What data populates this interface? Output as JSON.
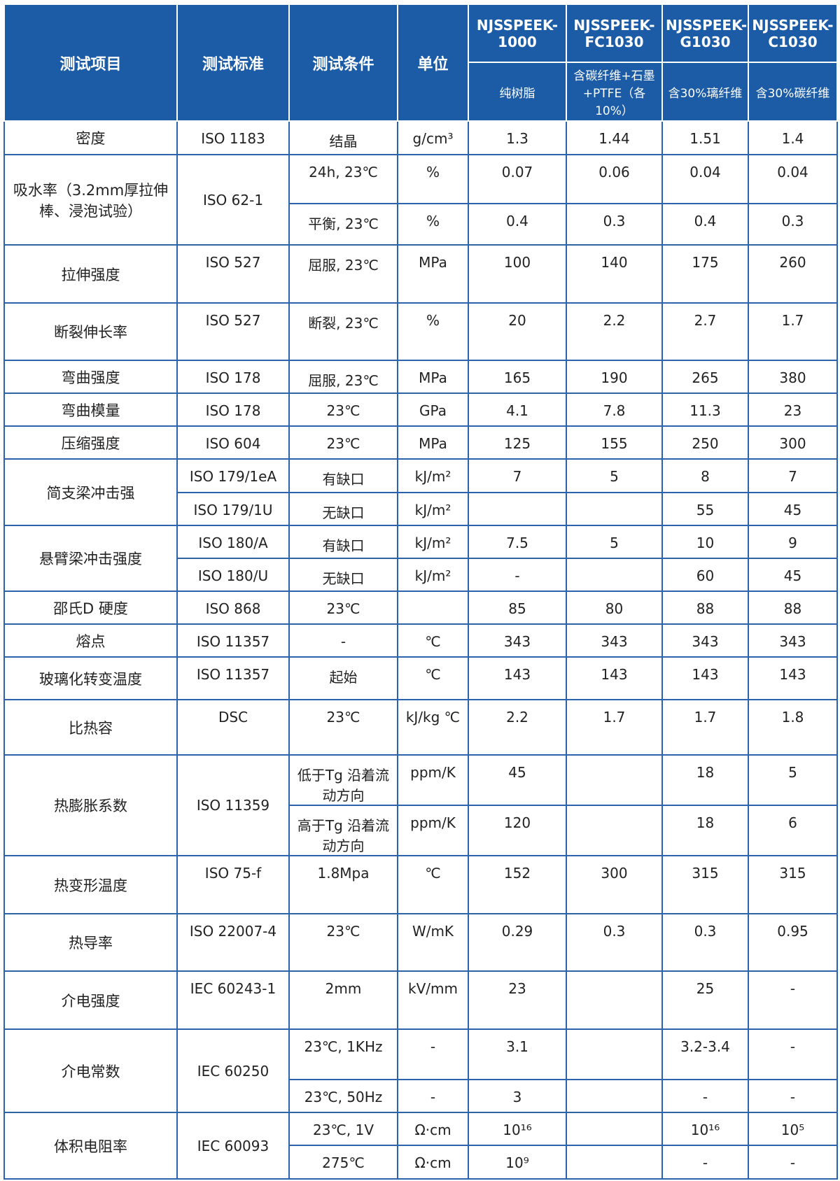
{
  "table": {
    "header": {
      "columns": [
        "测试项目",
        "测试标准",
        "测试条件",
        "单位"
      ],
      "products": [
        {
          "name": "NJSSPEEK-1000",
          "desc": "纯树脂"
        },
        {
          "name": "NJSSPEEK-FC1030",
          "desc": "含碳纤维+石墨+PTFE（各10%）"
        },
        {
          "name": "NJSSPEEK-G1030",
          "desc": "含30%璃纤维"
        },
        {
          "name": "NJSSPEEK-C1030",
          "desc": "含30%碳纤维"
        }
      ]
    },
    "groups": [
      {
        "item": "密度",
        "rows": [
          {
            "standard": "ISO 1183",
            "condition": "结晶",
            "unit": "g/cm³",
            "values": [
              "1.3",
              "1.44",
              "1.51",
              "1.4"
            ]
          }
        ]
      },
      {
        "item": "吸水率（3.2mm厚拉伸棒、浸泡试验）",
        "standard": "ISO 62-1",
        "rows": [
          {
            "condition": "24h, 23℃",
            "unit": "%",
            "values": [
              "0.07",
              "0.06",
              "0.04",
              "0.04"
            ]
          },
          {
            "condition": "平衡, 23℃",
            "unit": "%",
            "values": [
              "0.4",
              "0.3",
              "0.4",
              "0.3"
            ]
          }
        ]
      },
      {
        "item": "拉伸强度",
        "rows": [
          {
            "standard": "ISO 527",
            "condition": "屈服, 23℃",
            "unit": "MPa",
            "values": [
              "100",
              "140",
              "175",
              "260"
            ]
          }
        ]
      },
      {
        "item": "断裂伸长率",
        "rows": [
          {
            "standard": "ISO 527",
            "condition": "断裂, 23℃",
            "unit": "%",
            "values": [
              "20",
              "2.2",
              "2.7",
              "1.7"
            ]
          }
        ]
      },
      {
        "item": "弯曲强度",
        "rows": [
          {
            "standard": "ISO 178",
            "condition": "屈服, 23℃",
            "unit": "MPa",
            "values": [
              "165",
              "190",
              "265",
              "380"
            ]
          }
        ]
      },
      {
        "item": "弯曲模量",
        "rows": [
          {
            "standard": "ISO 178",
            "condition": "23℃",
            "unit": "GPa",
            "values": [
              "4.1",
              "7.8",
              "11.3",
              "23"
            ]
          }
        ]
      },
      {
        "item": "压缩强度",
        "rows": [
          {
            "standard": "ISO 604",
            "condition": "23℃",
            "unit": "MPa",
            "values": [
              "125",
              "155",
              "250",
              "300"
            ]
          }
        ]
      },
      {
        "item": "简支梁冲击强",
        "rows": [
          {
            "standard": "ISO 179/1eA",
            "condition": "有缺口",
            "unit": "kJ/m²",
            "values": [
              "7",
              "5",
              "8",
              "7"
            ]
          },
          {
            "standard": "ISO 179/1U",
            "condition": "无缺口",
            "unit": "kJ/m²",
            "values": [
              null,
              null,
              "55",
              "45"
            ]
          }
        ]
      },
      {
        "item": "悬臂梁冲击强度",
        "rows": [
          {
            "standard": "ISO 180/A",
            "condition": "有缺口",
            "unit": "kJ/m²",
            "values": [
              "7.5",
              "5",
              "10",
              "9"
            ]
          },
          {
            "standard": "ISO 180/U",
            "condition": "无缺口",
            "unit": "kJ/m²",
            "values": [
              "-",
              null,
              "60",
              "45"
            ]
          }
        ]
      },
      {
        "item": "邵氏D 硬度",
        "rows": [
          {
            "standard": "ISO 868",
            "condition": "23℃",
            "unit": null,
            "values": [
              "85",
              "80",
              "88",
              "88"
            ]
          }
        ]
      },
      {
        "item": "熔点",
        "rows": [
          {
            "standard": "ISO 11357",
            "condition": "-",
            "unit": "℃",
            "values": [
              "343",
              "343",
              "343",
              "343"
            ]
          }
        ]
      },
      {
        "item": "玻璃化转变温度",
        "rows": [
          {
            "standard": "ISO 11357",
            "condition": "起始",
            "unit": "℃",
            "values": [
              "143",
              "143",
              "143",
              "143"
            ]
          }
        ]
      },
      {
        "item": "比热容",
        "rows": [
          {
            "standard": "DSC",
            "condition": "23℃",
            "unit": "kJ/kg ℃",
            "values": [
              "2.2",
              "1.7",
              "1.7",
              "1.8"
            ]
          }
        ]
      },
      {
        "item": "热膨胀系数",
        "standard": "ISO 11359",
        "rows": [
          {
            "condition": "低于Tg 沿着流动方向",
            "unit": "ppm/K",
            "values": [
              "45",
              null,
              "18",
              "5"
            ]
          },
          {
            "condition": "高于Tg 沿着流动方向",
            "unit": "ppm/K",
            "values": [
              "120",
              null,
              "18",
              "6"
            ]
          }
        ]
      },
      {
        "item": "热变形温度",
        "rows": [
          {
            "standard": "ISO 75-f",
            "condition": "1.8Mpa",
            "unit": "℃",
            "values": [
              "152",
              "300",
              "315",
              "315"
            ]
          }
        ]
      },
      {
        "item": "热导率",
        "rows": [
          {
            "standard": "ISO 22007-4",
            "condition": "23℃",
            "unit": "W/mK",
            "values": [
              "0.29",
              "0.3",
              "0.3",
              "0.95"
            ]
          }
        ]
      },
      {
        "item": "介电强度",
        "rows": [
          {
            "standard": "IEC 60243-1",
            "condition": "2mm",
            "unit": "kV/mm",
            "values": [
              "23",
              null,
              "25",
              "-"
            ]
          }
        ]
      },
      {
        "item": "介电常数",
        "standard": "IEC 60250",
        "rows": [
          {
            "condition": "23℃, 1KHz",
            "unit": "-",
            "values": [
              "3.1",
              null,
              "3.2-3.4",
              "-"
            ]
          },
          {
            "condition": "23℃, 50Hz",
            "unit": "-",
            "values": [
              "3",
              null,
              "-",
              "-"
            ]
          }
        ]
      },
      {
        "item": "体积电阻率",
        "standard": "IEC 60093",
        "rows": [
          {
            "condition": "23℃, 1V",
            "unit": "Ω·cm",
            "values": [
              "10¹⁶",
              null,
              "10¹⁶",
              "10⁵"
            ]
          },
          {
            "condition": "275℃",
            "unit": "Ω·cm",
            "values": [
              "10⁹",
              null,
              "-",
              "-"
            ]
          }
        ]
      }
    ]
  }
}
